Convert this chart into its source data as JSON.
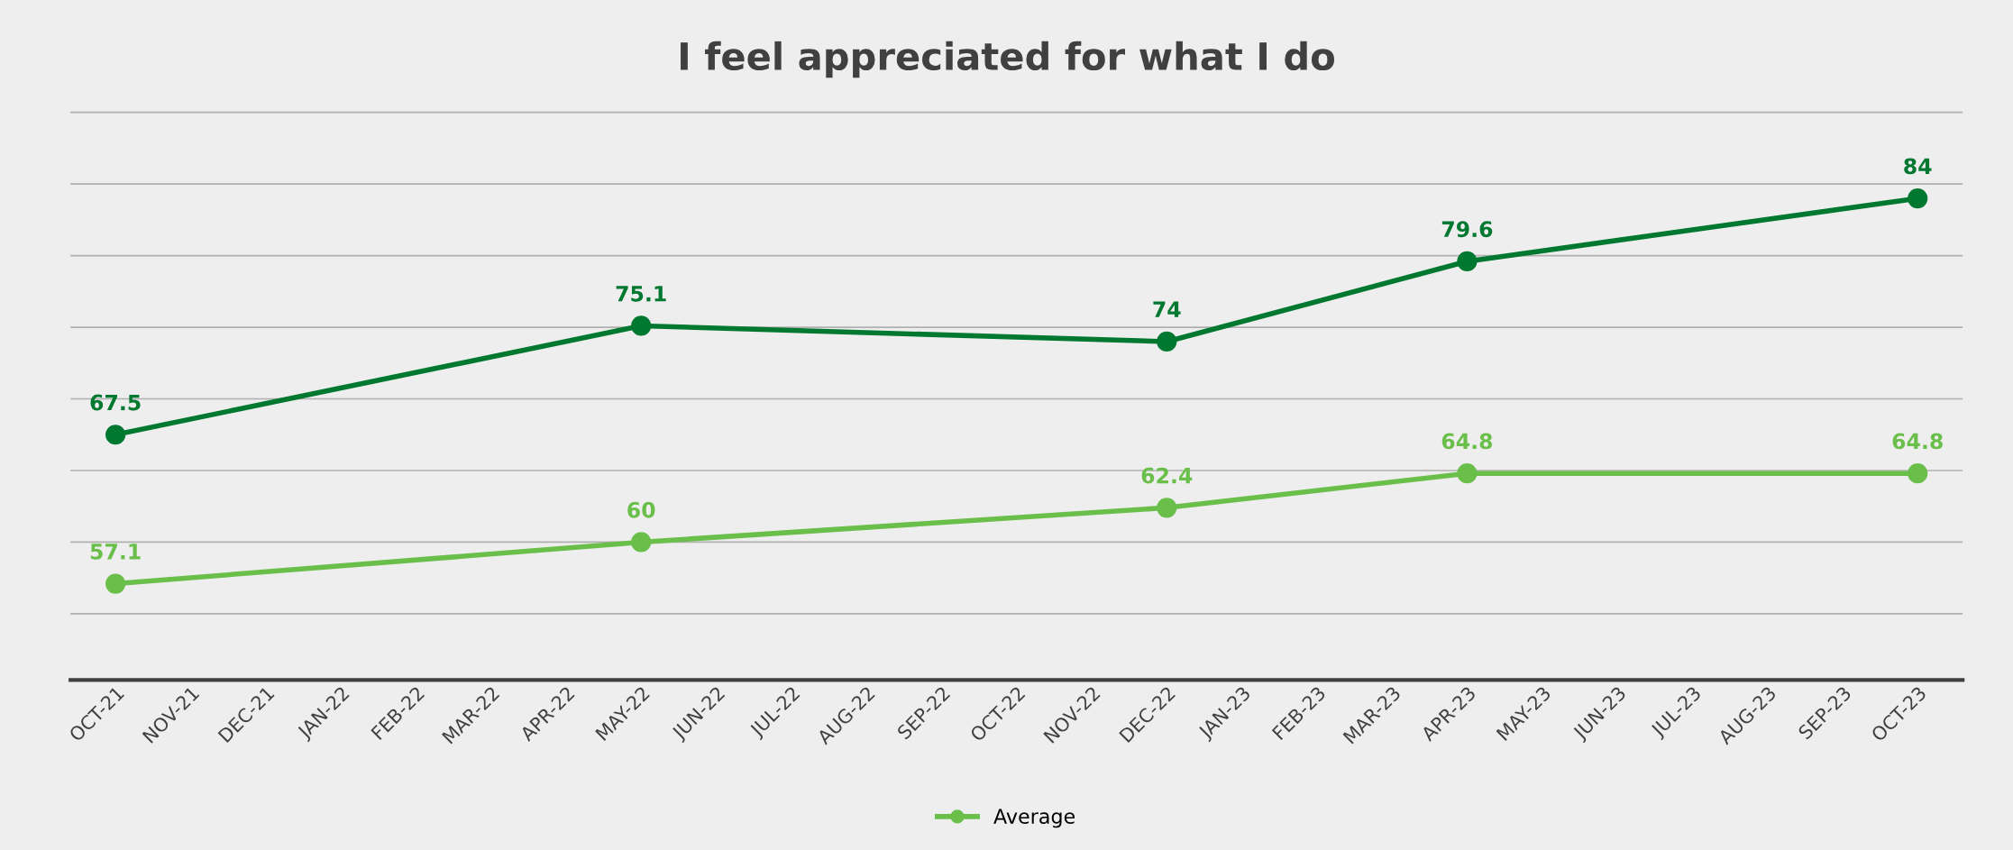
{
  "chart_data": {
    "type": "line",
    "title": "I feel appreciated for what I do",
    "categories": [
      "OCT-21",
      "NOV-21",
      "DEC-21",
      "JAN-22",
      "FEB-22",
      "MAR-22",
      "APR-22",
      "MAY-22",
      "JUN-22",
      "JUL-22",
      "AUG-22",
      "SEP-22",
      "OCT-22",
      "NOV-22",
      "DEC-22",
      "JAN-23",
      "FEB-23",
      "MAR-23",
      "APR-23",
      "MAY-23",
      "JUN-23",
      "JUL-23",
      "AUG-23",
      "SEP-23",
      "OCT-23"
    ],
    "series": [
      {
        "color": "#00782f",
        "values": [
          67.5,
          null,
          null,
          null,
          null,
          null,
          null,
          75.1,
          null,
          null,
          null,
          null,
          null,
          null,
          74,
          null,
          null,
          null,
          79.6,
          null,
          null,
          null,
          null,
          null,
          84
        ]
      },
      {
        "name": "Average",
        "color": "#6abf4b",
        "values": [
          57.1,
          null,
          null,
          null,
          null,
          null,
          null,
          60,
          null,
          null,
          null,
          null,
          null,
          null,
          62.4,
          null,
          null,
          null,
          64.8,
          null,
          null,
          null,
          null,
          null,
          64.8
        ]
      }
    ],
    "tick_labels": "x",
    "grid": "y",
    "legend": "bottom",
    "marker": "circle",
    "line_style": "solid",
    "data_labels": true
  }
}
